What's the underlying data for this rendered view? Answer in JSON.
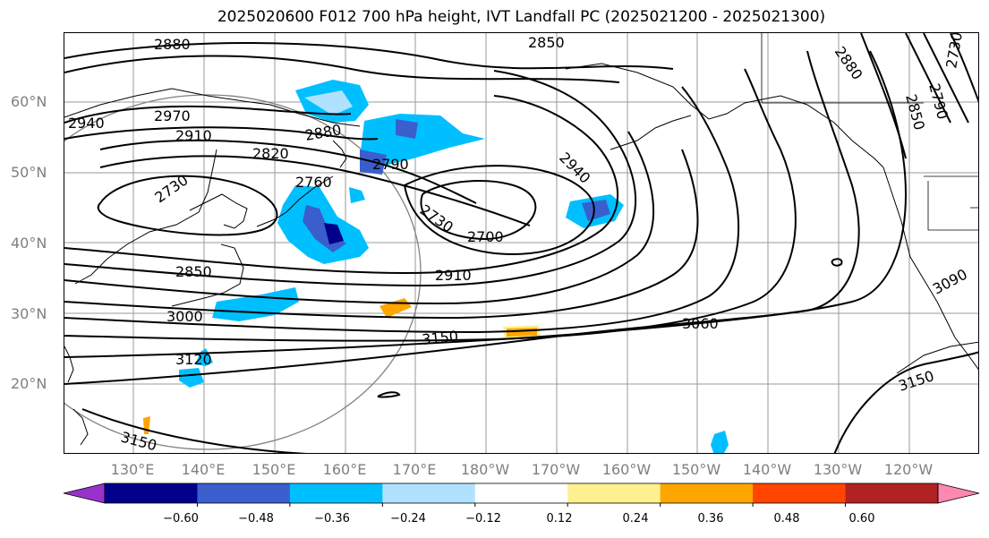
{
  "title": "2025020600 F012 700 hPa height, IVT Landfall PC (2025021200 - 2025021300)",
  "lat_labels": [
    "60°N",
    "50°N",
    "40°N",
    "30°N",
    "20°N"
  ],
  "lon_labels": [
    "130°E",
    "140°E",
    "150°E",
    "160°E",
    "170°E",
    "180°W",
    "170°W",
    "160°W",
    "150°W",
    "140°W",
    "130°W",
    "120°W"
  ],
  "contour_labels": [
    "2880",
    "2850",
    "2940",
    "2970",
    "2910",
    "2880",
    "2820",
    "2790",
    "2760",
    "2730",
    "2730",
    "2700",
    "2940",
    "2850",
    "2910",
    "3000",
    "3060",
    "3150",
    "3120",
    "3150",
    "3150",
    "3090",
    "2880",
    "2850",
    "2790",
    "2730"
  ],
  "colorbar": {
    "ticks": [
      "−0.60",
      "−0.48",
      "−0.36",
      "−0.24",
      "−0.12",
      "0.12",
      "0.24",
      "0.36",
      "0.48",
      "0.60"
    ],
    "colors": [
      "#9932cc",
      "#00008b",
      "#3a5fcd",
      "#00bfff",
      "#b0e2ff",
      "#ffffff",
      "#fff08f",
      "#ffa500",
      "#ff4500",
      "#b22222",
      "#ff88b0"
    ]
  }
}
